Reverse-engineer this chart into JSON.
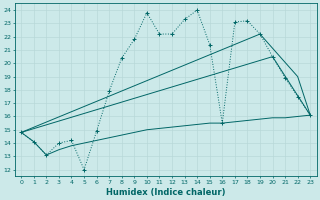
{
  "xlabel": "Humidex (Indice chaleur)",
  "background_color": "#cce9e9",
  "line_color": "#006666",
  "grid_color": "#aacccc",
  "xlim": [
    -0.5,
    23.5
  ],
  "ylim": [
    11.5,
    24.5
  ],
  "yticks": [
    12,
    13,
    14,
    15,
    16,
    17,
    18,
    19,
    20,
    21,
    22,
    23,
    24
  ],
  "xticks": [
    0,
    1,
    2,
    3,
    4,
    5,
    6,
    7,
    8,
    9,
    10,
    11,
    12,
    13,
    14,
    15,
    16,
    17,
    18,
    19,
    20,
    21,
    22,
    23
  ],
  "series": [
    {
      "x": [
        0,
        1,
        2,
        3,
        4,
        5,
        6,
        7,
        8,
        9,
        10,
        11,
        12,
        13,
        14,
        15,
        16,
        17,
        18,
        19,
        20,
        21,
        22,
        23
      ],
      "y": [
        14.8,
        14.1,
        13.1,
        14.0,
        14.2,
        12.0,
        14.9,
        17.9,
        20.4,
        21.8,
        23.8,
        22.2,
        22.2,
        23.3,
        24.0,
        21.4,
        15.5,
        23.1,
        23.2,
        22.2,
        20.5,
        18.9,
        17.5,
        16.1
      ],
      "linestyle": "dotted",
      "marker": "+"
    },
    {
      "x": [
        0,
        20,
        23
      ],
      "y": [
        14.8,
        20.5,
        16.1
      ],
      "linestyle": "solid",
      "marker": null
    },
    {
      "x": [
        0,
        19,
        22,
        23
      ],
      "y": [
        14.8,
        22.2,
        19.0,
        16.1
      ],
      "linestyle": "solid",
      "marker": null
    },
    {
      "x": [
        0,
        1,
        2,
        3,
        4,
        5,
        6,
        7,
        8,
        9,
        10,
        11,
        12,
        13,
        14,
        15,
        16,
        17,
        18,
        19,
        20,
        21,
        22,
        23
      ],
      "y": [
        14.8,
        14.1,
        13.1,
        13.5,
        13.8,
        14.0,
        14.2,
        14.4,
        14.6,
        14.8,
        15.0,
        15.1,
        15.2,
        15.3,
        15.4,
        15.5,
        15.5,
        15.6,
        15.7,
        15.8,
        15.9,
        15.9,
        16.0,
        16.1
      ],
      "linestyle": "solid",
      "marker": null
    }
  ]
}
